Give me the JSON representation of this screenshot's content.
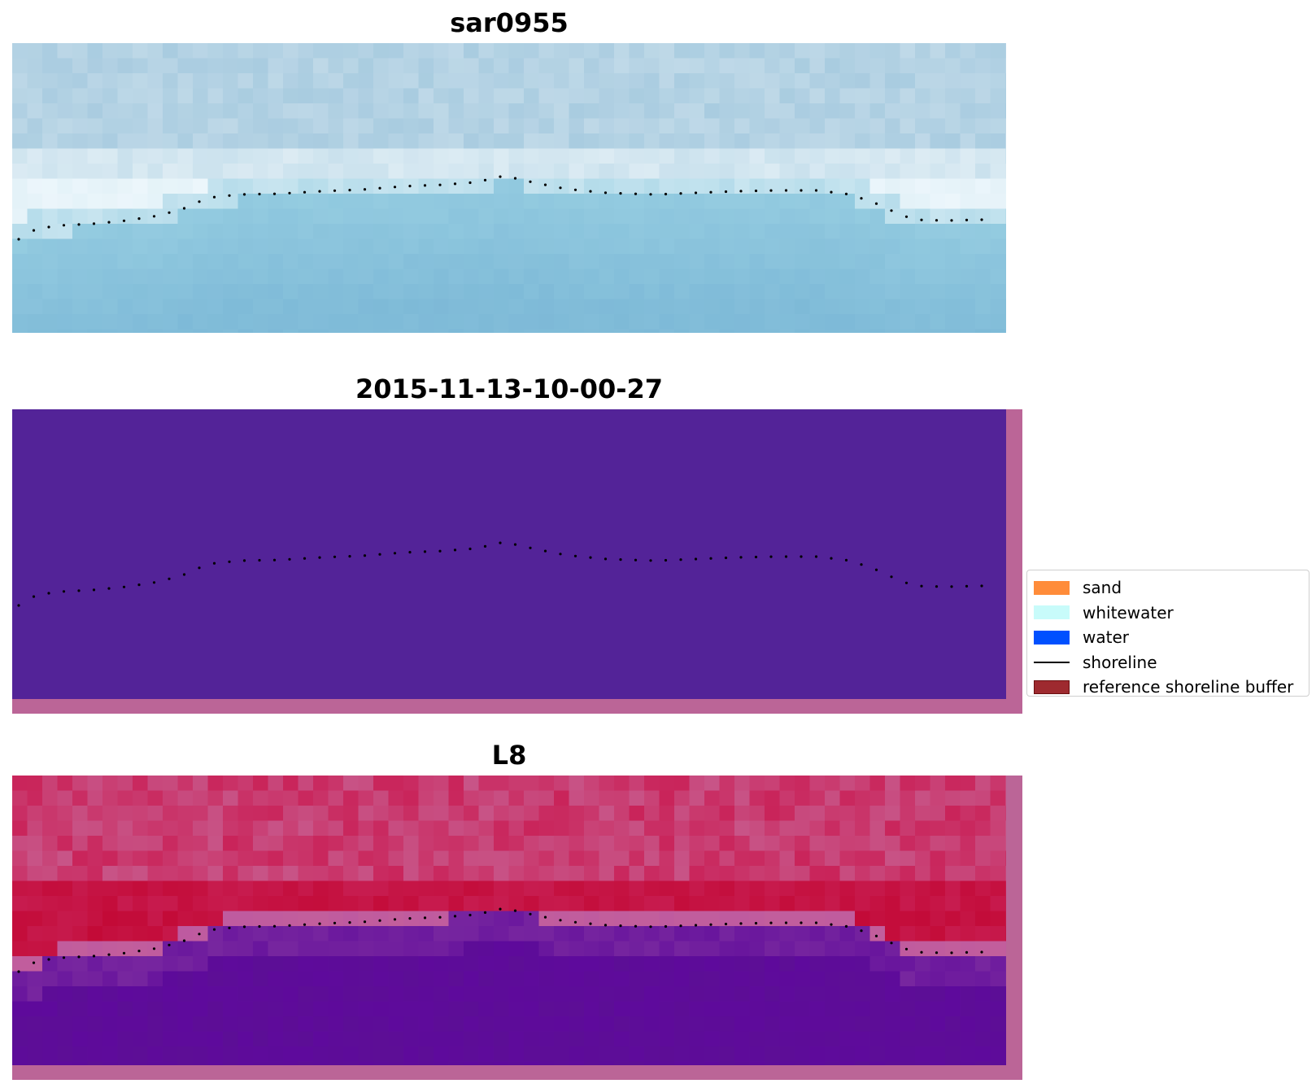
{
  "panels": [
    {
      "title": "sar0955",
      "image": "rgb",
      "background_color": "#a9cce0",
      "band_color": "#e4f2f8"
    },
    {
      "title": "2015-11-13-10-00-27",
      "image": "classification",
      "background_color": "#532398",
      "border_color": "#bb6597"
    },
    {
      "title": "L8",
      "image": "mndwi",
      "land_color": "#c9245a",
      "water_color": "#5e0a9c",
      "border_color": "#bb6597"
    }
  ],
  "shoreline": {
    "style": "dotted",
    "color": "#000000"
  },
  "legend": {
    "placement": "right-middle",
    "items": [
      {
        "label": "sand",
        "color": "#ff8c3a",
        "kind": "patch"
      },
      {
        "label": "whitewater",
        "color": "#c8fbfa",
        "kind": "patch"
      },
      {
        "label": "water",
        "color": "#0050ff",
        "kind": "patch"
      },
      {
        "label": "shoreline",
        "color": "#000000",
        "kind": "line"
      },
      {
        "label": "reference shoreline buffer",
        "color": "#9e2a2f",
        "kind": "patch"
      }
    ]
  }
}
